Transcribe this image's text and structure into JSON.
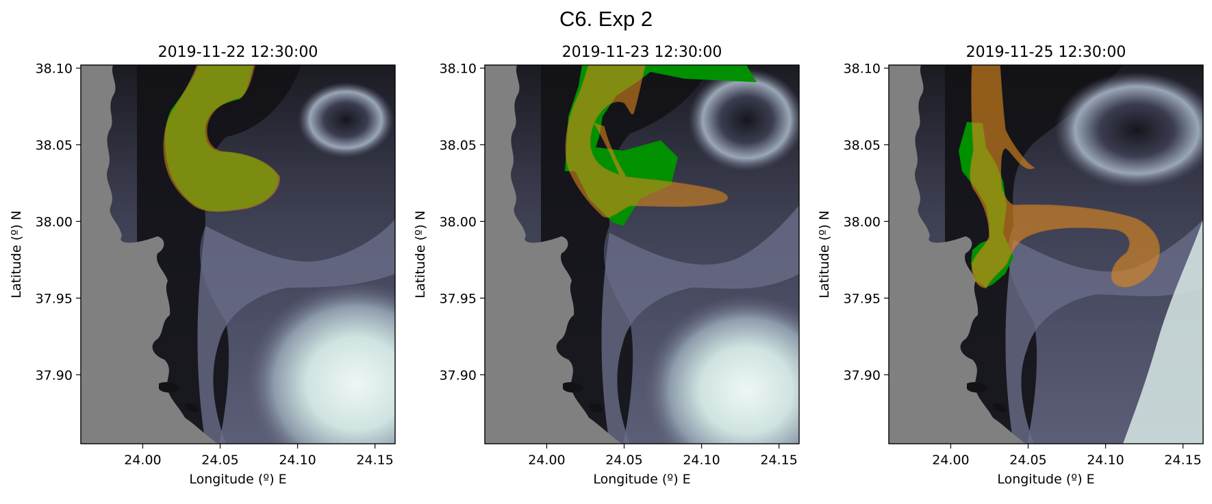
{
  "figure": {
    "title": "C6. Exp 2",
    "xlabel": "Longitude (º) E",
    "ylabel": "Latitude (º) N",
    "xticks": [
      "24.00",
      "24.05",
      "24.10",
      "24.15"
    ],
    "yticks": [
      "38.10",
      "38.05",
      "38.00",
      "37.95",
      "37.90"
    ],
    "panels": [
      {
        "title": "2019-11-22 12:30:00"
      },
      {
        "title": "2019-11-23 12:30:00"
      },
      {
        "title": "2019-11-25 12:30:00"
      }
    ]
  },
  "chart_data": {
    "type": "map",
    "xlim": [
      23.96,
      24.163
    ],
    "ylim": [
      37.855,
      38.102
    ],
    "xtick_values": [
      24.0,
      24.05,
      24.1,
      24.15
    ],
    "ytick_values": [
      38.1,
      38.05,
      38.0,
      37.95,
      37.9
    ],
    "colors": {
      "land": "#808080",
      "sea_dark": "#121216",
      "sea_mid": "#5c5f78",
      "sea_light": "#e4f1ef",
      "observed_area": "#009000",
      "modelled_area": "#e08a1e",
      "overlap": "#8a9a00"
    }
  }
}
